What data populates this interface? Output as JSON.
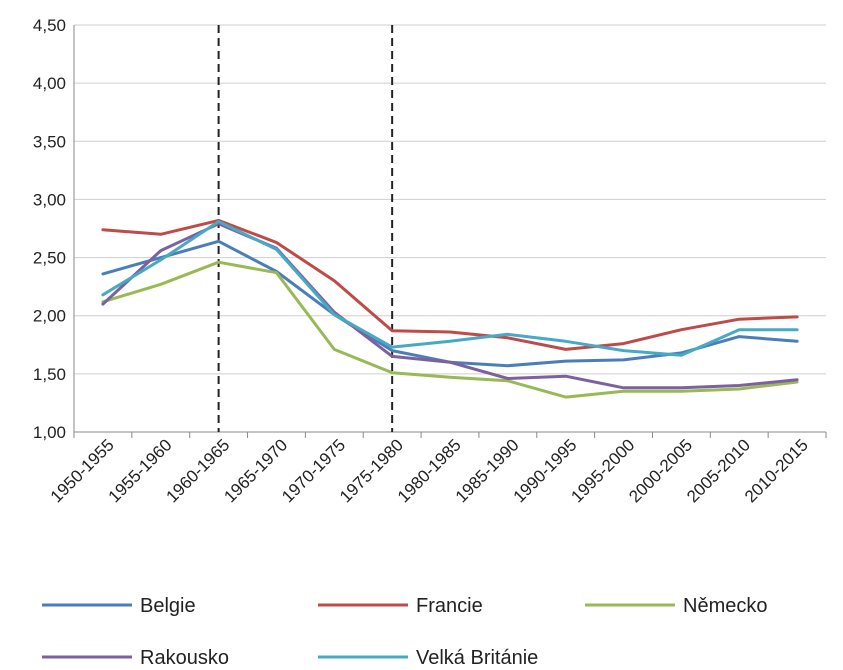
{
  "chart_data": {
    "type": "line",
    "categories": [
      "1950-1955",
      "1955-1960",
      "1960-1965",
      "1965-1970",
      "1970-1975",
      "1975-1980",
      "1980-1985",
      "1985-1990",
      "1990-1995",
      "1995-2000",
      "2000-2005",
      "2005-2010",
      "2010-2015"
    ],
    "ylim": [
      1.0,
      4.5
    ],
    "yticks": [
      "1,00",
      "1,50",
      "2,00",
      "2,50",
      "3,00",
      "3,50",
      "4,00",
      "4,50"
    ],
    "grid": "horizontal",
    "legend_position": "bottom",
    "vlines": [
      "1960-1965",
      "1975-1980"
    ],
    "series": [
      {
        "name": "Belgie",
        "color": "#4a7ebb",
        "values": [
          2.36,
          2.5,
          2.64,
          2.38,
          2.01,
          1.7,
          1.6,
          1.57,
          1.61,
          1.62,
          1.68,
          1.82,
          1.78
        ]
      },
      {
        "name": "Francie",
        "color": "#be4b48",
        "values": [
          2.74,
          2.7,
          2.82,
          2.63,
          2.3,
          1.87,
          1.86,
          1.81,
          1.71,
          1.76,
          1.88,
          1.97,
          1.99
        ]
      },
      {
        "name": "Německo",
        "color": "#98b954",
        "values": [
          2.12,
          2.27,
          2.46,
          2.37,
          1.71,
          1.51,
          1.47,
          1.44,
          1.3,
          1.35,
          1.35,
          1.37,
          1.43
        ]
      },
      {
        "name": "Rakousko",
        "color": "#7d60a0",
        "values": [
          2.1,
          2.56,
          2.79,
          2.58,
          2.03,
          1.65,
          1.6,
          1.46,
          1.48,
          1.38,
          1.38,
          1.4,
          1.45
        ]
      },
      {
        "name": "Velká Británie",
        "color": "#46aac5",
        "values": [
          2.18,
          2.48,
          2.81,
          2.57,
          2.01,
          1.73,
          1.78,
          1.84,
          1.78,
          1.7,
          1.66,
          1.88,
          1.88
        ]
      }
    ]
  }
}
